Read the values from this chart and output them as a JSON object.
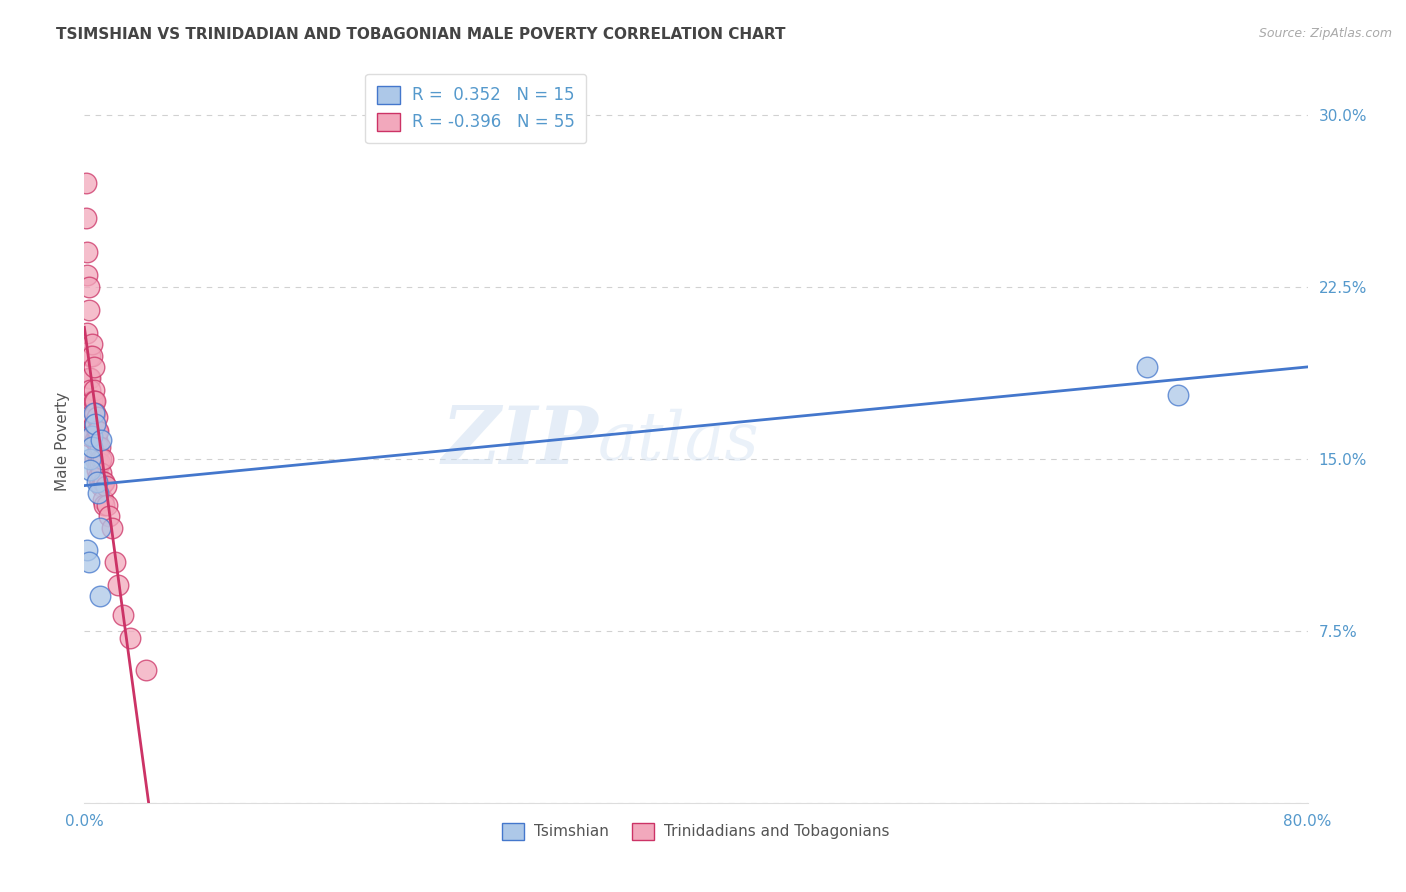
{
  "title": "TSIMSHIAN VS TRINIDADIAN AND TOBAGONIAN MALE POVERTY CORRELATION CHART",
  "source": "Source: ZipAtlas.com",
  "ylabel_label": "Male Poverty",
  "xlim": [
    0.0,
    0.8
  ],
  "ylim": [
    0.0,
    0.315
  ],
  "xticks": [
    0.0,
    0.2,
    0.4,
    0.6,
    0.8
  ],
  "yticks": [
    0.0,
    0.075,
    0.15,
    0.225,
    0.3
  ],
  "xticklabels": [
    "0.0%",
    "",
    "",
    "",
    "80.0%"
  ],
  "yticklabels": [
    "",
    "7.5%",
    "15.0%",
    "22.5%",
    "30.0%"
  ],
  "watermark_zip": "ZIP",
  "watermark_atlas": "atlas",
  "blue_R": 0.352,
  "blue_N": 15,
  "pink_R": -0.396,
  "pink_N": 55,
  "blue_color": "#adc8e8",
  "pink_color": "#f2a8bc",
  "blue_line_color": "#4477cc",
  "pink_line_color": "#cc3366",
  "background_color": "#ffffff",
  "grid_color": "#cccccc",
  "title_color": "#444444",
  "axis_color": "#5599cc",
  "legend_label_blue": "Tsimshian",
  "legend_label_pink": "Trinidadians and Tobagonians",
  "blue_scatter_x": [
    0.002,
    0.003,
    0.004,
    0.004,
    0.005,
    0.005,
    0.006,
    0.007,
    0.008,
    0.009,
    0.01,
    0.01,
    0.011,
    0.695,
    0.715
  ],
  "blue_scatter_y": [
    0.11,
    0.105,
    0.15,
    0.145,
    0.16,
    0.155,
    0.17,
    0.165,
    0.14,
    0.135,
    0.12,
    0.09,
    0.158,
    0.19,
    0.178
  ],
  "pink_scatter_x": [
    0.001,
    0.001,
    0.002,
    0.002,
    0.002,
    0.003,
    0.003,
    0.003,
    0.003,
    0.004,
    0.004,
    0.004,
    0.004,
    0.005,
    0.005,
    0.005,
    0.005,
    0.006,
    0.006,
    0.006,
    0.006,
    0.007,
    0.007,
    0.007,
    0.007,
    0.007,
    0.008,
    0.008,
    0.008,
    0.008,
    0.008,
    0.009,
    0.009,
    0.009,
    0.009,
    0.01,
    0.01,
    0.01,
    0.011,
    0.011,
    0.011,
    0.012,
    0.012,
    0.012,
    0.013,
    0.013,
    0.014,
    0.015,
    0.016,
    0.018,
    0.02,
    0.022,
    0.025,
    0.03,
    0.04
  ],
  "pink_scatter_y": [
    0.27,
    0.255,
    0.24,
    0.23,
    0.205,
    0.225,
    0.215,
    0.185,
    0.16,
    0.195,
    0.185,
    0.18,
    0.17,
    0.2,
    0.195,
    0.175,
    0.16,
    0.19,
    0.18,
    0.175,
    0.165,
    0.175,
    0.17,
    0.165,
    0.158,
    0.15,
    0.168,
    0.162,
    0.158,
    0.152,
    0.145,
    0.162,
    0.155,
    0.148,
    0.142,
    0.155,
    0.148,
    0.14,
    0.15,
    0.144,
    0.138,
    0.15,
    0.14,
    0.132,
    0.14,
    0.13,
    0.138,
    0.13,
    0.125,
    0.12,
    0.105,
    0.095,
    0.082,
    0.072,
    0.058
  ],
  "pink_trend_solid_end": 0.33,
  "pink_trend_dash_end": 0.8
}
